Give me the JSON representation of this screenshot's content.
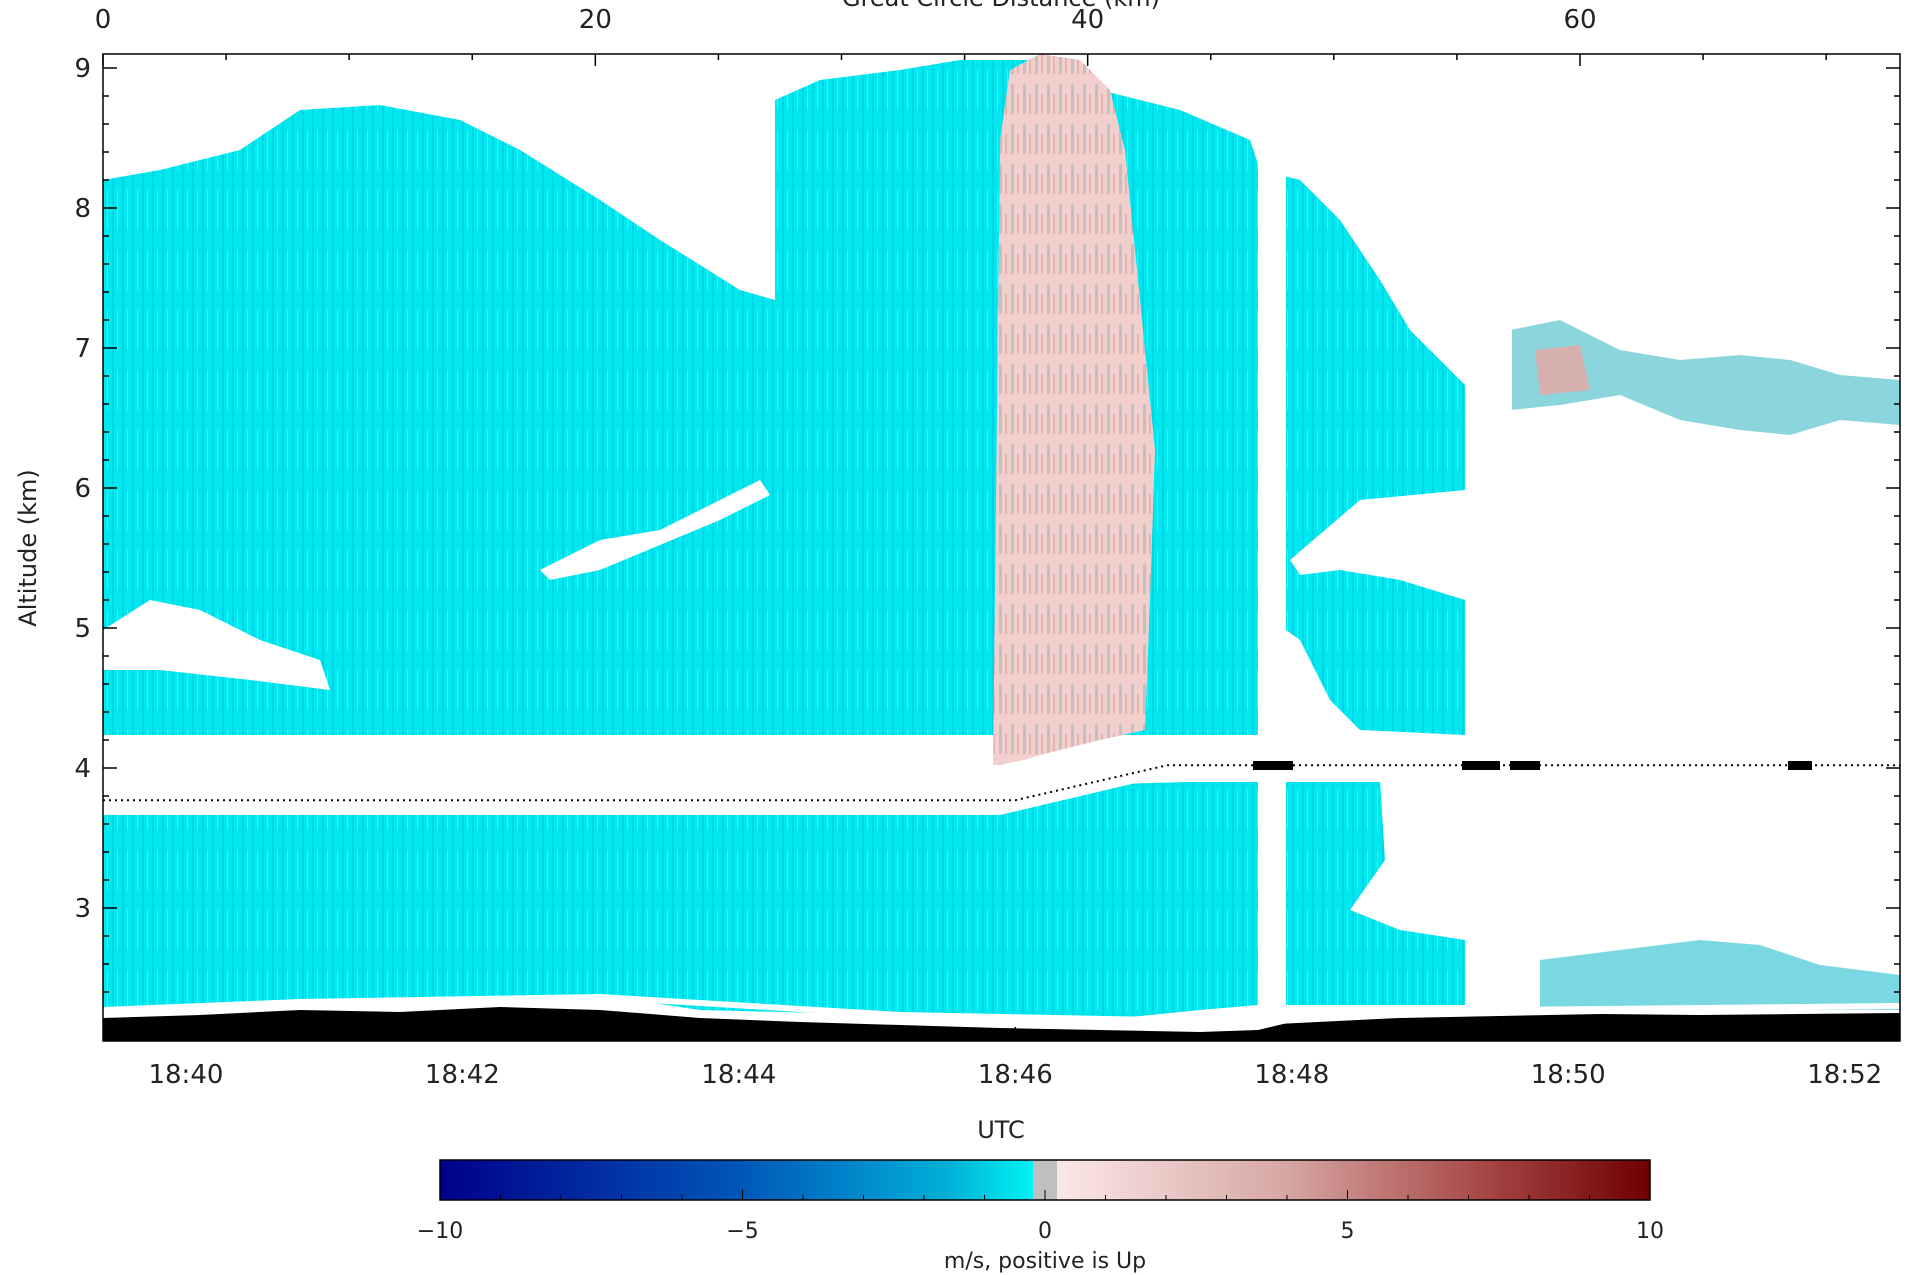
{
  "chart_data": {
    "type": "heatmap",
    "title": "",
    "top_axis": {
      "label": "Great Circle Distance (km)",
      "ticks": [
        "0",
        "20",
        "40",
        "60"
      ],
      "range": [
        0,
        73
      ]
    },
    "xlabel": "UTC",
    "xticks": [
      "18:40",
      "18:42",
      "18:44",
      "18:46",
      "18:48",
      "18:50",
      "18:52"
    ],
    "ylabel": "Altitude (km)",
    "yticks": [
      "3",
      "4",
      "5",
      "6",
      "7",
      "8",
      "9"
    ],
    "ylim": [
      2.05,
      9.1
    ],
    "colorbar": {
      "label": "m/s, positive is Up",
      "ticks": [
        "−10",
        "−5",
        "0",
        "5",
        "10"
      ],
      "range": [
        -10,
        10
      ],
      "colors": [
        "#00008b",
        "#0047ab",
        "#00a8d6",
        "#00f0f0",
        "#c0c0c0",
        "#f5d8d5",
        "#d0a09a",
        "#a04040",
        "#780000"
      ]
    },
    "flight_altitude": {
      "times": [
        "18:39:24",
        "18:46:00",
        "18:47:06",
        "18:52:24"
      ],
      "altitude_km": [
        3.77,
        3.77,
        4.02,
        4.02
      ]
    },
    "gaps_utc": [
      "18:47:48-18:48:00",
      "18:49:18-18:49:36",
      "18:49:41-18:49:43"
    ],
    "up_velocity_region_utc": [
      "18:45:54",
      "18:47:06"
    ]
  }
}
